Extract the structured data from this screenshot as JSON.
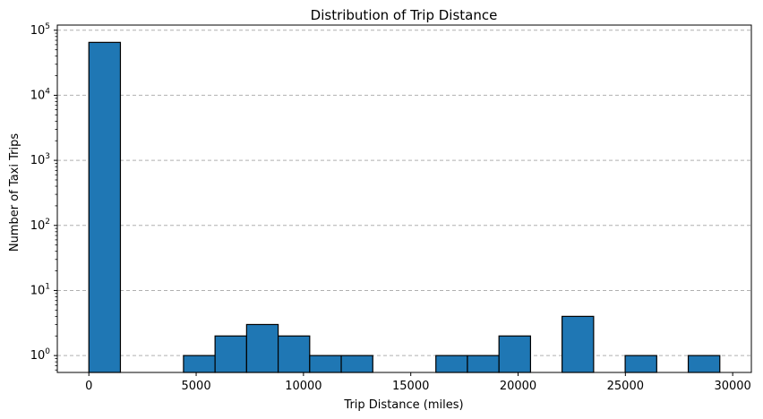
{
  "chart_data": {
    "type": "bar",
    "title": "Distribution of Trip Distance",
    "xlabel": "Trip Distance (miles)",
    "ylabel": "Number of Taxi Trips",
    "yscale": "log",
    "grid": "y-dashed",
    "xlim": [
      -1470,
      30870
    ],
    "ylim": [
      0.55,
      120000
    ],
    "xticks": [
      0,
      5000,
      10000,
      15000,
      20000,
      25000,
      30000
    ],
    "xtick_labels": [
      "0",
      "5000",
      "10000",
      "15000",
      "20000",
      "25000",
      "30000"
    ],
    "yticks": [
      1,
      10,
      100,
      1000,
      10000,
      100000
    ],
    "ytick_labels": [
      {
        "base": "10",
        "exp": "0"
      },
      {
        "base": "10",
        "exp": "1"
      },
      {
        "base": "10",
        "exp": "2"
      },
      {
        "base": "10",
        "exp": "3"
      },
      {
        "base": "10",
        "exp": "4"
      },
      {
        "base": "10",
        "exp": "5"
      }
    ],
    "bar_color": "#1f77b4",
    "edge_color": "#000000",
    "bins": [
      {
        "start": 0,
        "end": 1470,
        "count": 65000
      },
      {
        "start": 4410,
        "end": 5880,
        "count": 1
      },
      {
        "start": 5880,
        "end": 7350,
        "count": 2
      },
      {
        "start": 7350,
        "end": 8820,
        "count": 3
      },
      {
        "start": 8820,
        "end": 10290,
        "count": 2
      },
      {
        "start": 10290,
        "end": 11760,
        "count": 1
      },
      {
        "start": 11760,
        "end": 13230,
        "count": 1
      },
      {
        "start": 16170,
        "end": 17640,
        "count": 1
      },
      {
        "start": 17640,
        "end": 19110,
        "count": 1
      },
      {
        "start": 19110,
        "end": 20580,
        "count": 2
      },
      {
        "start": 22050,
        "end": 23520,
        "count": 4
      },
      {
        "start": 24990,
        "end": 26460,
        "count": 1
      },
      {
        "start": 27930,
        "end": 29400,
        "count": 1
      }
    ]
  }
}
